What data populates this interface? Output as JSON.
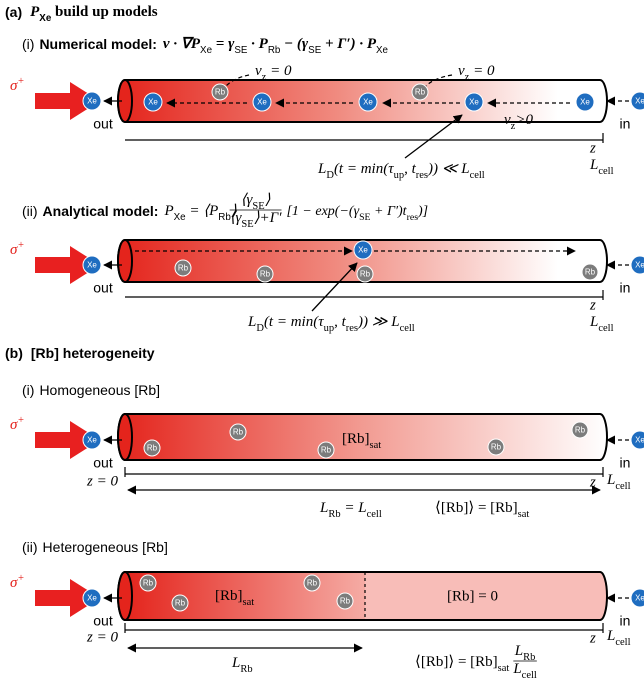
{
  "panel_a": {
    "label": "(a)",
    "title": [
      {
        "text": "P",
        "sub": "Xe"
      },
      {
        "text": " build up models"
      }
    ],
    "numerical": {
      "label": "(i)",
      "name": "Numerical model:",
      "equation": [
        {
          "text": "v · ∇P",
          "sub": "Xe"
        },
        {
          "text": " = γ",
          "sub": "SE"
        },
        {
          "text": " · P",
          "sub": "Rb"
        },
        {
          "text": " − (γ",
          "sub": "SE"
        },
        {
          "text": " + Γ′) · P",
          "sub": "Xe"
        }
      ],
      "laser": [
        {
          "text": "σ",
          "sup": "+"
        }
      ],
      "outlet": "out",
      "inlet": "in",
      "xe_atoms": [
        "Xe",
        "Xe",
        "Xe",
        "Xe",
        "Xe",
        "Xe",
        "Xe"
      ],
      "rb_atoms": [
        "Rb",
        "Rb"
      ],
      "stagnant_labels": [
        [
          {
            "text": "v",
            "sub": "z"
          },
          {
            "text": " = 0"
          }
        ],
        [
          {
            "text": "v",
            "sub": "z"
          },
          {
            "text": " = 0"
          }
        ]
      ],
      "flow_label": [
        {
          "text": "v",
          "sub": "z"
        },
        {
          "text": ">0"
        }
      ],
      "z_label": "z",
      "length_label": [
        {
          "text": "L",
          "sub": "cell"
        }
      ],
      "diffusion_label": [
        {
          "text": "L",
          "sub": "D"
        },
        {
          "text": "(t = min(τ",
          "sub": "up"
        },
        {
          "text": ", t",
          "sub": "res"
        },
        {
          "text": ")) ≪ L",
          "sub": "cell"
        }
      ]
    },
    "analytical": {
      "label": "(ii)",
      "name": "Analytical model:",
      "equation": [
        {
          "text": "P",
          "sub": "Xe"
        },
        {
          "text": " = ⟨P",
          "sub": "Rb"
        },
        {
          "text": "⟩"
        }
      ],
      "fraction_numerator": [
        {
          "text": "⟨γ",
          "sub": "SE"
        },
        {
          "text": "⟩"
        }
      ],
      "fraction_denominator": [
        {
          "text": "⟨γ",
          "sub": "SE"
        },
        {
          "text": "⟩+Γ′"
        }
      ],
      "equation_tail": [
        {
          "text": "[1 − exp(−(γ",
          "sub": "SE"
        },
        {
          "text": " + Γ′)t",
          "sub": "res"
        },
        {
          "text": ")]"
        }
      ],
      "laser": [
        {
          "text": "σ",
          "sup": "+"
        }
      ],
      "outlet": "out",
      "inlet": "in",
      "xe_atoms": [
        "Xe",
        "Xe",
        "Xe"
      ],
      "rb_atoms": [
        "Rb",
        "Rb",
        "Rb",
        "Rb"
      ],
      "z_label": "z",
      "length_label": [
        {
          "text": "L",
          "sub": "cell"
        }
      ],
      "diffusion_label": [
        {
          "text": "L",
          "sub": "D"
        },
        {
          "text": "(t = min(τ",
          "sub": "up"
        },
        {
          "text": ", t",
          "sub": "res"
        },
        {
          "text": ")) ≫ L",
          "sub": "cell"
        }
      ]
    }
  },
  "panel_b": {
    "label": "(b)",
    "title": "[Rb] heterogeneity",
    "homogeneous": {
      "label": "(i)",
      "name": "Homogeneous [Rb]",
      "laser": [
        {
          "text": "σ",
          "sup": "+"
        }
      ],
      "outlet": "out",
      "inlet": "in",
      "xe_atoms": [
        "Xe",
        "Xe"
      ],
      "rb_atoms": [
        "Rb",
        "Rb",
        "Rb",
        "Rb",
        "Rb"
      ],
      "concentration_label": [
        {
          "text": "[Rb]",
          "sub": "sat"
        }
      ],
      "origin_label": "z = 0",
      "z_label": "z",
      "length_label": [
        {
          "text": "L",
          "sub": "cell"
        }
      ],
      "rb_length": [
        {
          "text": "L",
          "sub": "Rb"
        },
        {
          "text": " = L",
          "sub": "cell"
        }
      ],
      "mean_label": [
        {
          "text": "⟨[Rb]⟩ = [Rb]",
          "sub": "sat"
        }
      ]
    },
    "heterogeneous": {
      "label": "(ii)",
      "name": "Heterogeneous [Rb]",
      "laser": [
        {
          "text": "σ",
          "sup": "+"
        }
      ],
      "outlet": "out",
      "inlet": "in",
      "xe_atoms": [
        "Xe",
        "Xe"
      ],
      "rb_atoms": [
        "Rb",
        "Rb",
        "Rb",
        "Rb"
      ],
      "concentration_label": [
        {
          "text": "[Rb]",
          "sub": "sat"
        }
      ],
      "empty_label": "[Rb] = 0",
      "origin_label": "z = 0",
      "z_label": "z",
      "length_label": [
        {
          "text": "L",
          "sub": "cell"
        }
      ],
      "rb_length": [
        {
          "text": "L",
          "sub": "Rb"
        }
      ],
      "mean_label": [
        {
          "text": "⟨[Rb]⟩ = [Rb]",
          "sub": "sat"
        }
      ],
      "mean_numerator": [
        {
          "text": "L",
          "sub": "Rb"
        }
      ],
      "mean_denominator": [
        {
          "text": "L",
          "sub": "cell"
        }
      ]
    }
  }
}
